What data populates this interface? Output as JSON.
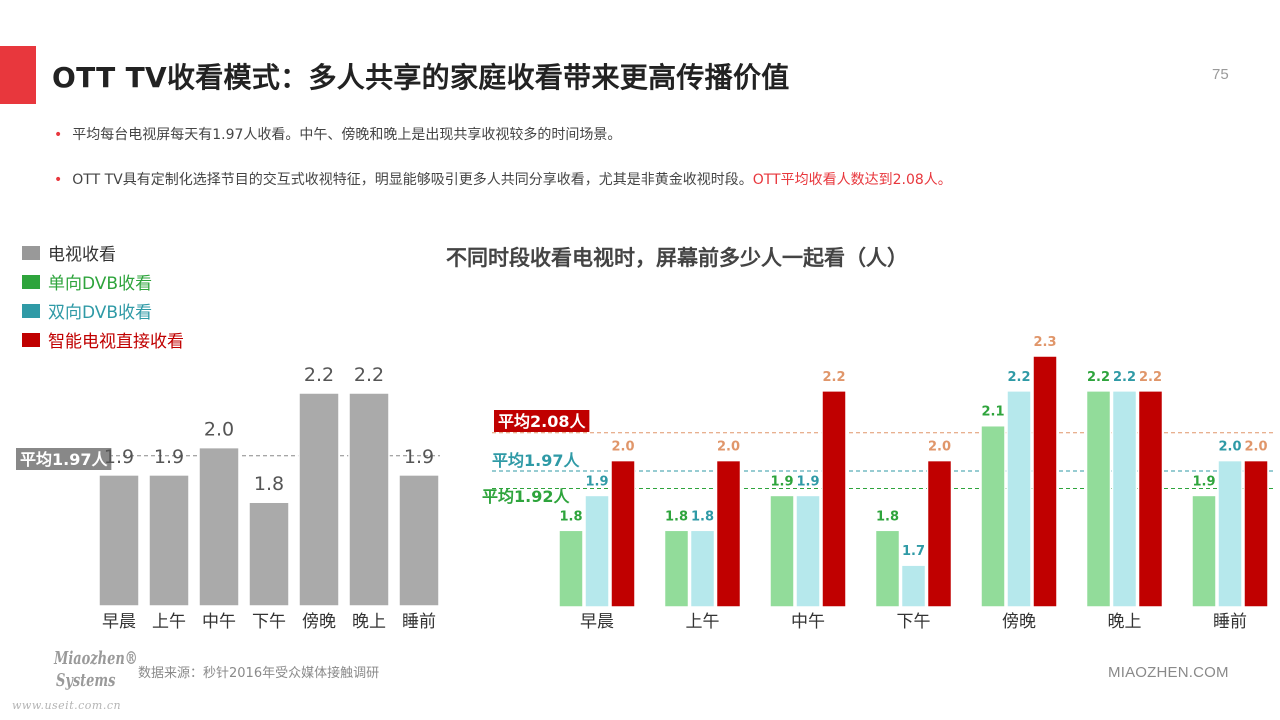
{
  "header": {
    "title": "OTT TV收看模式：多人共享的家庭收看带来更高传播价值",
    "page_number": "75"
  },
  "bullets": [
    {
      "text": "平均每台电视屏每天有1.97人收看。中午、傍晚和晚上是出现共享收视较多的时间场景。",
      "highlight": ""
    },
    {
      "text": "OTT TV具有定制化选择节目的交互式收视特征，明显能够吸引更多人共同分享收看，尤其是非黄金收视时段。",
      "highlight": "OTT平均收看人数达到2.08人。"
    }
  ],
  "legend": {
    "items": [
      {
        "label": "电视收看",
        "color": "#999999",
        "text_color": "#333333"
      },
      {
        "label": "单向DVB收看",
        "color": "#2ea43c",
        "text_color": "#2ea43c"
      },
      {
        "label": "双向DVB收看",
        "color": "#2f9aa6",
        "text_color": "#2f9aa6"
      },
      {
        "label": "智能电视直接收看",
        "color": "#c00000",
        "text_color": "#c00000"
      }
    ]
  },
  "footer": {
    "logo_line1": "Miaozhen®",
    "logo_line2": "Systems",
    "watermark": "www.useit.com.cn",
    "source": "数据来源：秒针2016年受众媒体接触调研",
    "brand": "MIAOZHEN.COM"
  },
  "chart_data": [
    {
      "type": "bar",
      "title": "",
      "categories": [
        "早晨",
        "上午",
        "中午",
        "下午",
        "傍晚",
        "晚上",
        "睡前"
      ],
      "series": [
        {
          "name": "电视收看",
          "values": [
            1.9,
            1.9,
            2.0,
            1.8,
            2.2,
            2.2,
            1.9
          ],
          "color": "#aaaaaa",
          "label_color": "#555555"
        }
      ],
      "reference_lines": [
        {
          "label": "平均1.97人",
          "value": 1.97,
          "color": "#888888",
          "label_bg": "#888888",
          "label_color": "#ffffff"
        }
      ],
      "ylim": [
        1.42,
        2.28
      ],
      "grid": false
    },
    {
      "type": "bar",
      "title": "不同时段收看电视时，屏幕前多少人一起看（人）",
      "categories": [
        "早晨",
        "上午",
        "中午",
        "下午",
        "傍晚",
        "晚上",
        "睡前"
      ],
      "series": [
        {
          "name": "单向DVB收看",
          "values": [
            1.8,
            1.8,
            1.9,
            1.8,
            2.1,
            2.2,
            1.9
          ],
          "color": "#92dc9a",
          "label_color": "#2ea43c"
        },
        {
          "name": "双向DVB收看",
          "values": [
            1.9,
            1.8,
            1.9,
            1.7,
            2.2,
            2.2,
            2.0
          ],
          "color": "#b6e8ec",
          "label_color": "#2f9aa6"
        },
        {
          "name": "智能电视直接收看",
          "values": [
            2.0,
            2.0,
            2.2,
            2.0,
            2.3,
            2.2,
            2.0
          ],
          "color": "#c00000",
          "label_color": "#e0966a"
        }
      ],
      "reference_lines": [
        {
          "label": "平均2.08人",
          "value": 2.08,
          "color": "#e0966a",
          "label_bg": "#c00000",
          "label_color": "#ffffff"
        },
        {
          "label": "平均1.97人",
          "value": 1.97,
          "color": "#2f9aa6",
          "label_bg": "",
          "label_color": "#2f9aa6"
        },
        {
          "label": "平均1.92人",
          "value": 1.92,
          "color": "#2ea43c",
          "label_bg": "",
          "label_color": "#2ea43c"
        }
      ],
      "ylim": [
        1.58,
        2.38
      ],
      "grid": false
    }
  ]
}
